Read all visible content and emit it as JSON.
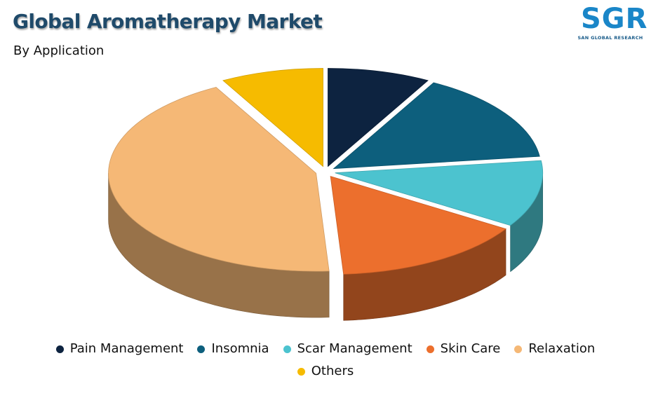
{
  "header": {
    "title": "Global Aromatherapy Market",
    "subtitle": "By Application"
  },
  "logo": {
    "mark": "SGR",
    "tagline": "SAN GLOBAL RESEARCH"
  },
  "chart_data": {
    "type": "pie",
    "title": "Global Aromatherapy Market",
    "subtitle": "By Application",
    "legend_position": "bottom",
    "style": "3d-exploded",
    "labels": [
      "Pain Management",
      "Insomnia",
      "Scar Management",
      "Skin Care",
      "Relaxation",
      "Others"
    ],
    "values": [
      8,
      15,
      11,
      15,
      43,
      8
    ],
    "colors": [
      "#0d2340",
      "#0d5f7d",
      "#4cc3cf",
      "#ec6f2d",
      "#f5b876",
      "#f6bb00"
    ]
  }
}
